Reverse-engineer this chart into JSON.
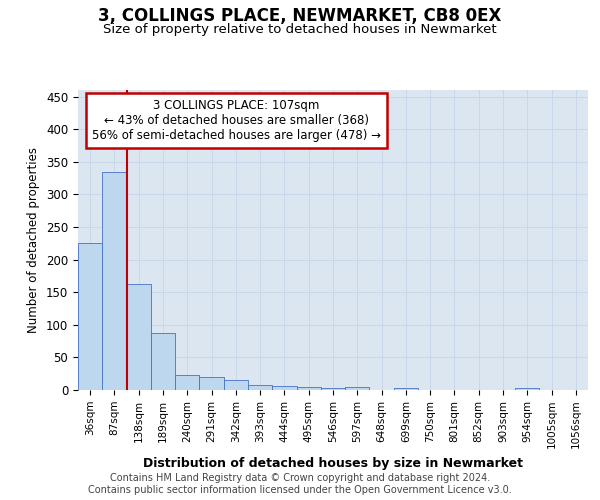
{
  "title": "3, COLLINGS PLACE, NEWMARKET, CB8 0EX",
  "subtitle": "Size of property relative to detached houses in Newmarket",
  "xlabel": "Distribution of detached houses by size in Newmarket",
  "ylabel": "Number of detached properties",
  "bar_labels": [
    "36sqm",
    "87sqm",
    "138sqm",
    "189sqm",
    "240sqm",
    "291sqm",
    "342sqm",
    "393sqm",
    "444sqm",
    "495sqm",
    "546sqm",
    "597sqm",
    "648sqm",
    "699sqm",
    "750sqm",
    "801sqm",
    "852sqm",
    "903sqm",
    "954sqm",
    "1005sqm",
    "1056sqm"
  ],
  "bar_values": [
    225,
    335,
    163,
    88,
    23,
    20,
    15,
    7,
    6,
    4,
    3,
    4,
    0,
    3,
    0,
    0,
    0,
    0,
    3,
    0,
    0
  ],
  "bar_color": "#bdd7ee",
  "bar_edge_color": "#4472c4",
  "grid_color": "#c8d8ea",
  "bg_color": "#dce6f1",
  "vline_color": "#c00000",
  "vline_x_idx": 1.5,
  "annotation_line1": "3 COLLINGS PLACE: 107sqm",
  "annotation_line2": "← 43% of detached houses are smaller (368)",
  "annotation_line3": "56% of semi-detached houses are larger (478) →",
  "annotation_box_color": "#c00000",
  "ylim": [
    0,
    460
  ],
  "yticks": [
    0,
    50,
    100,
    150,
    200,
    250,
    300,
    350,
    400,
    450
  ],
  "footer_line1": "Contains HM Land Registry data © Crown copyright and database right 2024.",
  "footer_line2": "Contains public sector information licensed under the Open Government Licence v3.0."
}
